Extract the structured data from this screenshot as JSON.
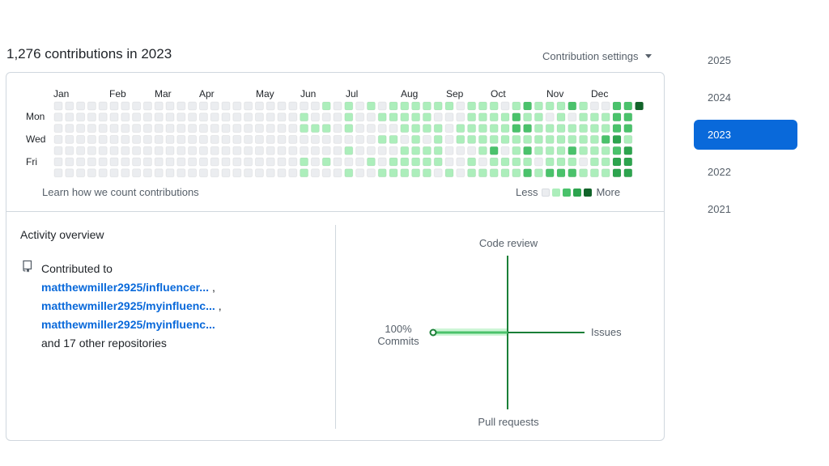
{
  "heading": "1,276 contributions in 2023",
  "settings_label": "Contribution settings",
  "graph": {
    "months": [
      "Jan",
      "Feb",
      "Mar",
      "Apr",
      "May",
      "Jun",
      "Jul",
      "Aug",
      "Sep",
      "Oct",
      "Nov",
      "Dec"
    ],
    "day_labels": [
      "Mon",
      "Wed",
      "Fri"
    ],
    "learn_link": "Learn how we count contributions",
    "legend_less": "Less",
    "legend_more": "More"
  },
  "colors": {
    "level0": "#ebedf0",
    "level1": "#aceebb",
    "level2": "#4ac26b",
    "level3": "#2da44e",
    "level4": "#116329",
    "accent": "#0969da",
    "link": "#0969da",
    "axis": "#1a7f37"
  },
  "activity": {
    "title": "Activity overview",
    "contributed_to": "Contributed to",
    "repos": [
      {
        "name": "matthewmiller2925/influencer...",
        "suffix": ","
      },
      {
        "name": "matthewmiller2925/myinfluenc...",
        "suffix": ","
      },
      {
        "name": "matthewmiller2925/myinfluenc...",
        "suffix": ""
      }
    ],
    "others": "and 17 other repositories",
    "axes": {
      "top": "Code review",
      "right": "Issues",
      "bottom": "Pull requests",
      "left_pct": "100%",
      "left": "Commits"
    },
    "commits_pct": 100
  },
  "years": [
    "2025",
    "2024",
    "2023",
    "2022",
    "2021"
  ],
  "selected_year": "2023"
}
